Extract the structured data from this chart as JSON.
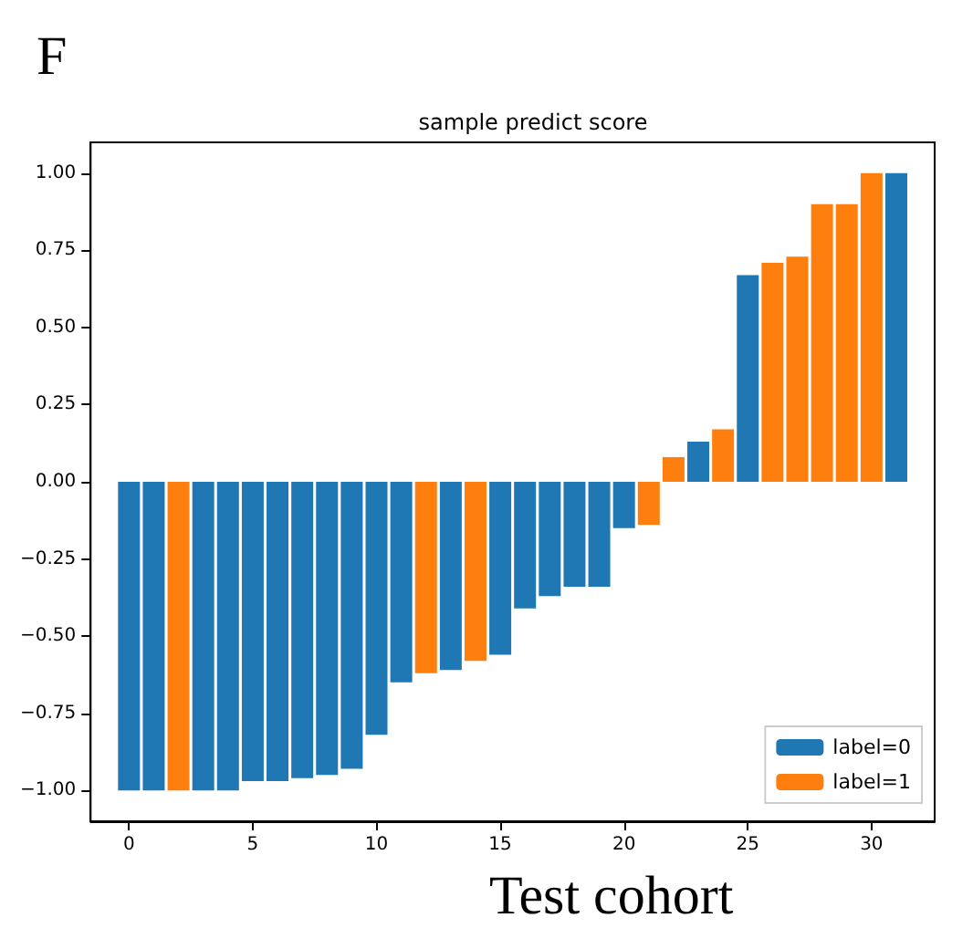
{
  "chart_data": {
    "type": "bar",
    "title": "sample predict score",
    "annotations": [
      "F",
      "Test cohort"
    ],
    "x": [
      0,
      1,
      2,
      3,
      4,
      5,
      6,
      7,
      8,
      9,
      10,
      11,
      12,
      13,
      14,
      15,
      16,
      17,
      18,
      19,
      20,
      21,
      22,
      23,
      24,
      25,
      26,
      27,
      28,
      29,
      30,
      31
    ],
    "series": [
      {
        "name": "label=0",
        "color": "#1f77b4",
        "values": [
          -1.0,
          -1.0,
          null,
          -1.0,
          -1.0,
          -0.97,
          -0.97,
          -0.96,
          -0.95,
          -0.93,
          -0.82,
          -0.65,
          null,
          -0.61,
          null,
          -0.56,
          -0.41,
          -0.37,
          -0.34,
          -0.34,
          -0.15,
          null,
          null,
          0.13,
          null,
          0.67,
          null,
          null,
          null,
          null,
          null,
          1.0
        ]
      },
      {
        "name": "label=1",
        "color": "#ff7f0e",
        "values": [
          null,
          null,
          -1.0,
          null,
          null,
          null,
          null,
          null,
          null,
          null,
          null,
          null,
          -0.62,
          null,
          -0.58,
          null,
          null,
          null,
          null,
          null,
          null,
          -0.14,
          0.08,
          null,
          0.17,
          null,
          0.71,
          0.73,
          0.9,
          0.9,
          1.0,
          null
        ]
      }
    ],
    "xlim": [
      -1.55,
      32.55
    ],
    "xticks": [
      0,
      5,
      10,
      15,
      20,
      25,
      30
    ],
    "ylim": [
      -1.1,
      1.1
    ],
    "yticks": [
      {
        "value": -1,
        "label": "−1.00"
      },
      {
        "value": -0.75,
        "label": "−0.75"
      },
      {
        "value": -0.5,
        "label": "−0.50"
      },
      {
        "value": -0.25,
        "label": "−0.25"
      },
      {
        "value": 0,
        "label": "0.00"
      },
      {
        "value": 0.25,
        "label": "0.25"
      },
      {
        "value": 0.5,
        "label": "0.50"
      },
      {
        "value": 0.75,
        "label": "0.75"
      },
      {
        "value": 1,
        "label": "1.00"
      }
    ],
    "legend": "bottom right",
    "grid": false
  }
}
